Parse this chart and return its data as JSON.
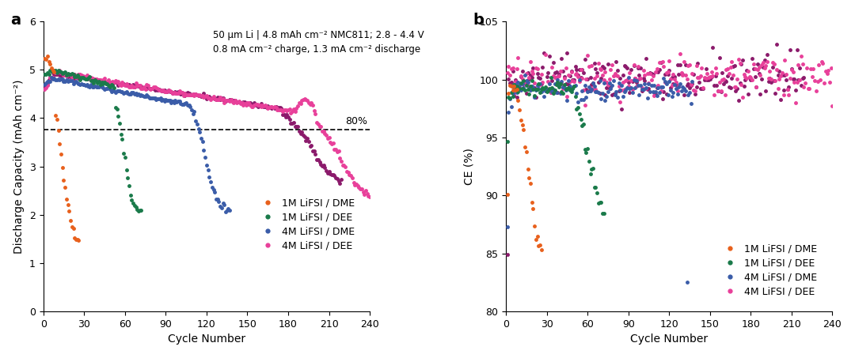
{
  "title_a_line1": "50 μm Li | 4.8 mAh cm⁻² NMC811; 2.8 - 4.4 V",
  "title_a_line2": "0.8 mA cm⁻² charge, 1.3 mA cm⁻² discharge",
  "colors": {
    "1M_DME": "#E8601C",
    "1M_DEE": "#1A7A4A",
    "4M_DME": "#3A5CA8",
    "4M_DEE_dark": "#8B1A6B",
    "4M_DEE_light": "#E8409A"
  },
  "legend_labels": [
    "1M LiFSI / DME",
    "1M LiFSI / DEE",
    "4M LiFSI / DME",
    "4M LiFSI / DEE"
  ],
  "panel_a": {
    "xlabel": "Cycle Number",
    "ylabel": "Discharge Capacity (mAh cm⁻²)",
    "xlim": [
      0,
      240
    ],
    "ylim": [
      0,
      6
    ],
    "xticks": [
      0,
      30,
      60,
      90,
      120,
      150,
      180,
      210,
      240
    ],
    "yticks": [
      0,
      1,
      2,
      3,
      4,
      5,
      6
    ],
    "dashed_line_y": 3.76,
    "dashed_label": "80%"
  },
  "panel_b": {
    "xlabel": "Cycle Number",
    "ylabel": "CE (%)",
    "xlim": [
      0,
      240
    ],
    "ylim": [
      80,
      105
    ],
    "xticks": [
      0,
      30,
      60,
      90,
      120,
      150,
      180,
      210,
      240
    ],
    "yticks": [
      80,
      85,
      90,
      95,
      100,
      105
    ]
  }
}
